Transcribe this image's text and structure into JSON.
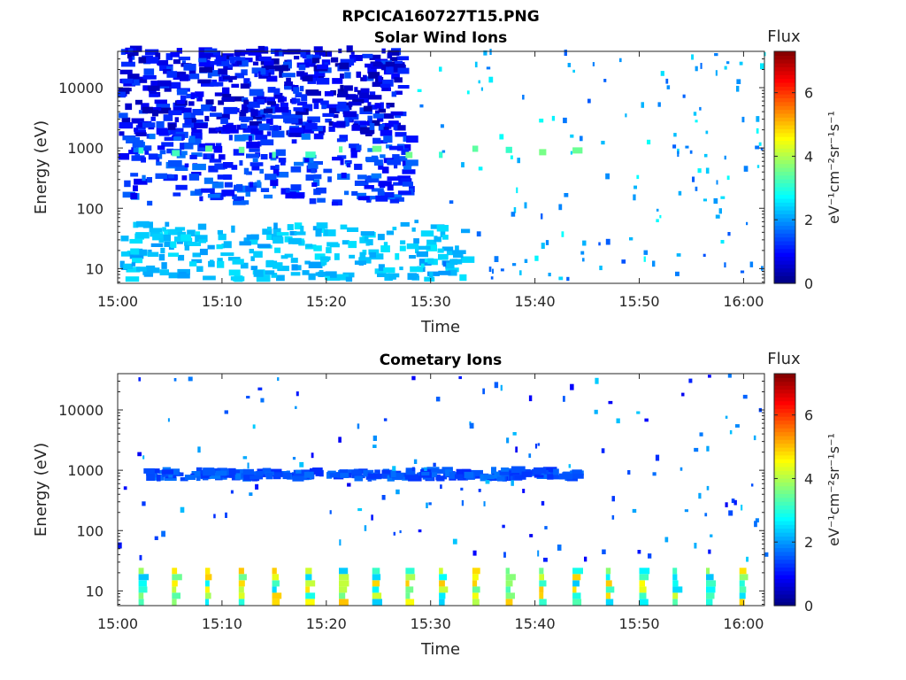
{
  "figure_title": "RPCICA160727T15.PNG",
  "colormap": [
    "#00007f",
    "#0000ff",
    "#007fff",
    "#00ffff",
    "#7fff7f",
    "#ffff00",
    "#ff7f00",
    "#ff0000",
    "#7f0000"
  ],
  "chart_data": [
    {
      "type": "heatmap",
      "title": "Solar Wind Ions",
      "xlabel": "Time",
      "ylabel": "Energy (eV)",
      "x_range": [
        "15:00",
        "16:02"
      ],
      "x_ticks": [
        "15:00",
        "15:10",
        "15:20",
        "15:30",
        "15:40",
        "15:50",
        "16:00"
      ],
      "y_scale": "log",
      "y_range": [
        5.7,
        40000
      ],
      "y_ticks": [
        "10",
        "100",
        "1000",
        "10000"
      ],
      "colorbar": {
        "label": "Flux",
        "unit": "eV⁻¹cm⁻²sr⁻¹s⁻¹",
        "range": [
          0,
          7.3
        ],
        "ticks": [
          "0",
          "2",
          "4",
          "6"
        ]
      },
      "regions": [
        {
          "desc": "dense low-flux blue band",
          "t": [
            0,
            27
          ],
          "energy": [
            1500,
            40000
          ],
          "flux": [
            0.3,
            1.5
          ]
        },
        {
          "desc": "blue band",
          "t": [
            0,
            28
          ],
          "energy": [
            110,
            1500
          ],
          "flux": [
            0.8,
            1.8
          ]
        },
        {
          "desc": "periodic green spots",
          "t": [
            2,
            44
          ],
          "energy": [
            700,
            900
          ],
          "flux": [
            3.0,
            3.6
          ]
        },
        {
          "desc": "cyan low-energy patches",
          "t": [
            0,
            33
          ],
          "energy": [
            6,
            50
          ],
          "flux": [
            2.0,
            2.6
          ]
        },
        {
          "desc": "sparse scatter",
          "t": [
            28,
            62
          ],
          "energy": [
            6,
            40000
          ],
          "flux": [
            1.5,
            2.8
          ]
        }
      ]
    },
    {
      "type": "heatmap",
      "title": "Cometary Ions",
      "xlabel": "Time",
      "ylabel": "Energy (eV)",
      "x_range": [
        "15:00",
        "16:02"
      ],
      "x_ticks": [
        "15:00",
        "15:10",
        "15:20",
        "15:30",
        "15:40",
        "15:50",
        "16:00"
      ],
      "y_scale": "log",
      "y_range": [
        5.7,
        40000
      ],
      "y_ticks": [
        "10",
        "100",
        "1000",
        "10000"
      ],
      "colorbar": {
        "label": "Flux",
        "unit": "eV⁻¹cm⁻²sr⁻¹s⁻¹",
        "range": [
          0,
          7.3
        ],
        "ticks": [
          "0",
          "2",
          "4",
          "6"
        ]
      },
      "regions": [
        {
          "desc": "periodic low-energy bursts",
          "t": [
            2,
            61
          ],
          "energy": [
            6,
            25
          ],
          "flux": [
            2.3,
            5.0
          ]
        },
        {
          "desc": "blue dashes near 800 eV",
          "t": [
            2,
            44
          ],
          "energy": [
            650,
            900
          ],
          "flux": [
            1.2,
            1.8
          ]
        },
        {
          "desc": "sparse scatter",
          "t": [
            0,
            62
          ],
          "energy": [
            30,
            35000
          ],
          "flux": [
            0.8,
            2.4
          ]
        }
      ]
    }
  ]
}
